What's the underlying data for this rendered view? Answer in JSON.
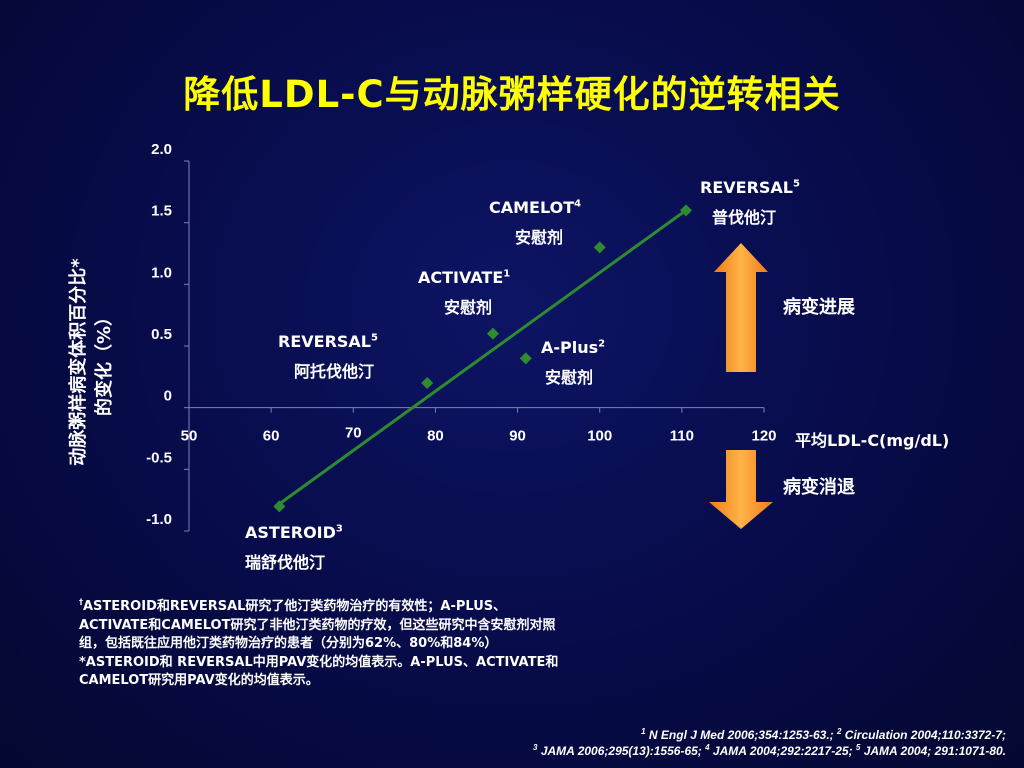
{
  "slide": {
    "title": "降低LDL-C与动脉粥样硬化的逆转相关"
  },
  "chart_data": {
    "type": "scatter",
    "title": "",
    "xlabel": "平均LDL-C(mg/dL)",
    "ylabel_line1": "动脉粥样病变体积百分比*",
    "ylabel_line2": "的变化（%）",
    "xlim": [
      50,
      120
    ],
    "ylim": [
      -1.0,
      2.0
    ],
    "x_ticks": [
      "50",
      "60",
      "70",
      "80",
      "90",
      "100",
      "110",
      "120"
    ],
    "y_ticks": [
      "2.0",
      "1.5",
      "1.0",
      "0.5",
      "0",
      "-0.5",
      "-1.0"
    ],
    "points": [
      {
        "trial": "ASTEROID",
        "ref": "3",
        "drug": "瑞舒伐他汀",
        "x": 61,
        "y": -0.8
      },
      {
        "trial": "REVERSAL",
        "ref": "5",
        "drug": "阿托伐他汀",
        "x": 79,
        "y": 0.2
      },
      {
        "trial": "ACTIVATE",
        "ref": "1",
        "drug": "安慰剂",
        "x": 87,
        "y": 0.6
      },
      {
        "trial": "A-Plus",
        "ref": "2",
        "drug": "安慰剂",
        "x": 91,
        "y": 0.4
      },
      {
        "trial": "CAMELOT",
        "ref": "4",
        "drug": "安慰剂",
        "x": 100,
        "y": 1.3
      },
      {
        "trial": "REVERSAL",
        "ref": "5",
        "drug": "普伐他汀",
        "x": 110.5,
        "y": 1.6
      }
    ],
    "trendline": {
      "x": [
        61,
        110.5
      ],
      "y": [
        -0.78,
        1.6
      ]
    },
    "point_color": "#2e8b2e",
    "line_color": "#2e8b2e",
    "arrow_color": "#f7a233"
  },
  "annotations": {
    "up_label": "病变进展",
    "down_label": "病变消退"
  },
  "point_labels": {
    "asteroid": {
      "name": "ASTEROID",
      "ref": "3",
      "drug": "瑞舒伐他汀"
    },
    "reversal_ator": {
      "name": "REVERSAL",
      "ref": "5",
      "drug": "阿托伐他汀"
    },
    "activate": {
      "name": "ACTIVATE",
      "ref": "1",
      "drug": "安慰剂"
    },
    "aplus": {
      "name": "A-Plus",
      "ref": "2",
      "drug": "安慰剂"
    },
    "camelot": {
      "name": "CAMELOT",
      "ref": "4",
      "drug": "安慰剂"
    },
    "reversal_prav": {
      "name": "REVERSAL",
      "ref": "5",
      "drug": "普伐他汀"
    }
  },
  "notes": {
    "dagger": "†",
    "line1": "ASTEROID和REVERSAL研究了他汀类药物治疗的有效性；A-PLUS、",
    "line2": "ACTIVATE和CAMELOT研究了非他汀类药物的疗效，但这些研究中含安慰剂对照",
    "line3": "组，包括既往应用他汀类药物治疗的患者（分别为62%、80%和84%）",
    "line4": "*ASTEROID和 REVERSAL中用PAV变化的均值表示。A-PLUS、ACTIVATE和",
    "line5": "CAMELOT研究用PAV变化的均值表示。"
  },
  "references": {
    "r1_sup": "1",
    "r1_text": " N Engl J Med 2006;354:1253-63.; ",
    "r2_sup": "2",
    "r2_text": " Circulation 2004;110:3372-7;",
    "r3_sup": "3",
    "r3_text": " JAMA 2006;295(13):1556-65; ",
    "r4_sup": "4",
    "r4_text": " JAMA 2004;292:2217-25; ",
    "r5_sup": "5",
    "r5_text": " JAMA 2004; 291:1071-80."
  }
}
